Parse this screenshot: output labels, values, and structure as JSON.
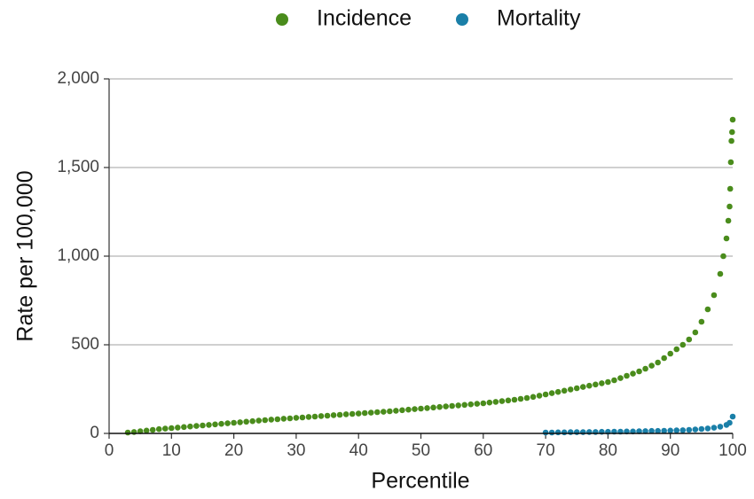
{
  "chart_data": {
    "type": "scatter",
    "xlabel": "Percentile",
    "ylabel": "Rate per 100,000",
    "xlim": [
      0,
      100
    ],
    "xticks": [
      0,
      10,
      20,
      30,
      40,
      50,
      60,
      70,
      80,
      90,
      100
    ],
    "ylim": [
      0,
      2000
    ],
    "yticks": [
      0,
      {
        "value": 500,
        "label": "500"
      },
      {
        "value": 1000,
        "label": "1,000"
      },
      {
        "value": 1500,
        "label": "1,500"
      },
      {
        "value": 2000,
        "label": "2,000"
      }
    ],
    "grid": true,
    "legend": "top",
    "series": [
      {
        "name": "Incidence",
        "color": "#4a8c1c",
        "x": [
          3,
          4,
          5,
          6,
          7,
          8,
          9,
          10,
          11,
          12,
          13,
          14,
          15,
          16,
          17,
          18,
          19,
          20,
          21,
          22,
          23,
          24,
          25,
          26,
          27,
          28,
          29,
          30,
          31,
          32,
          33,
          34,
          35,
          36,
          37,
          38,
          39,
          40,
          41,
          42,
          43,
          44,
          45,
          46,
          47,
          48,
          49,
          50,
          51,
          52,
          53,
          54,
          55,
          56,
          57,
          58,
          59,
          60,
          61,
          62,
          63,
          64,
          65,
          66,
          67,
          68,
          69,
          70,
          71,
          72,
          73,
          74,
          75,
          76,
          77,
          78,
          79,
          80,
          81,
          82,
          83,
          84,
          85,
          86,
          87,
          88,
          89,
          90,
          91,
          92,
          93,
          94,
          95,
          96,
          97,
          98,
          98.5,
          99,
          99.3,
          99.5,
          99.6,
          99.7,
          99.8,
          99.9,
          100
        ],
        "values": [
          5,
          8,
          12,
          16,
          20,
          24,
          27,
          30,
          33,
          36,
          39,
          42,
          45,
          48,
          51,
          54,
          57,
          60,
          63,
          66,
          69,
          72,
          75,
          78,
          80,
          83,
          85,
          88,
          90,
          93,
          95,
          98,
          100,
          103,
          105,
          108,
          110,
          112,
          115,
          117,
          120,
          122,
          125,
          128,
          131,
          134,
          137,
          140,
          143,
          146,
          149,
          152,
          155,
          158,
          161,
          164,
          167,
          170,
          174,
          178,
          182,
          186,
          190,
          195,
          200,
          206,
          213,
          220,
          227,
          234,
          241,
          248,
          255,
          262,
          269,
          276,
          283,
          290,
          300,
          312,
          325,
          337,
          350,
          365,
          382,
          400,
          425,
          450,
          475,
          500,
          530,
          570,
          630,
          700,
          780,
          900,
          1000,
          1100,
          1200,
          1280,
          1380,
          1530,
          1650,
          1700,
          1770
        ]
      },
      {
        "name": "Mortality",
        "color": "#1a7fa8",
        "x": [
          70,
          71,
          72,
          73,
          74,
          75,
          76,
          77,
          78,
          79,
          80,
          81,
          82,
          83,
          84,
          85,
          86,
          87,
          88,
          89,
          90,
          91,
          92,
          93,
          94,
          95,
          96,
          97,
          98,
          99,
          99.5,
          100
        ],
        "values": [
          5,
          5,
          6,
          6,
          7,
          7,
          7,
          8,
          8,
          9,
          9,
          10,
          10,
          11,
          11,
          12,
          13,
          14,
          14,
          15,
          16,
          17,
          18,
          20,
          22,
          25,
          28,
          32,
          38,
          48,
          60,
          95
        ]
      }
    ]
  }
}
